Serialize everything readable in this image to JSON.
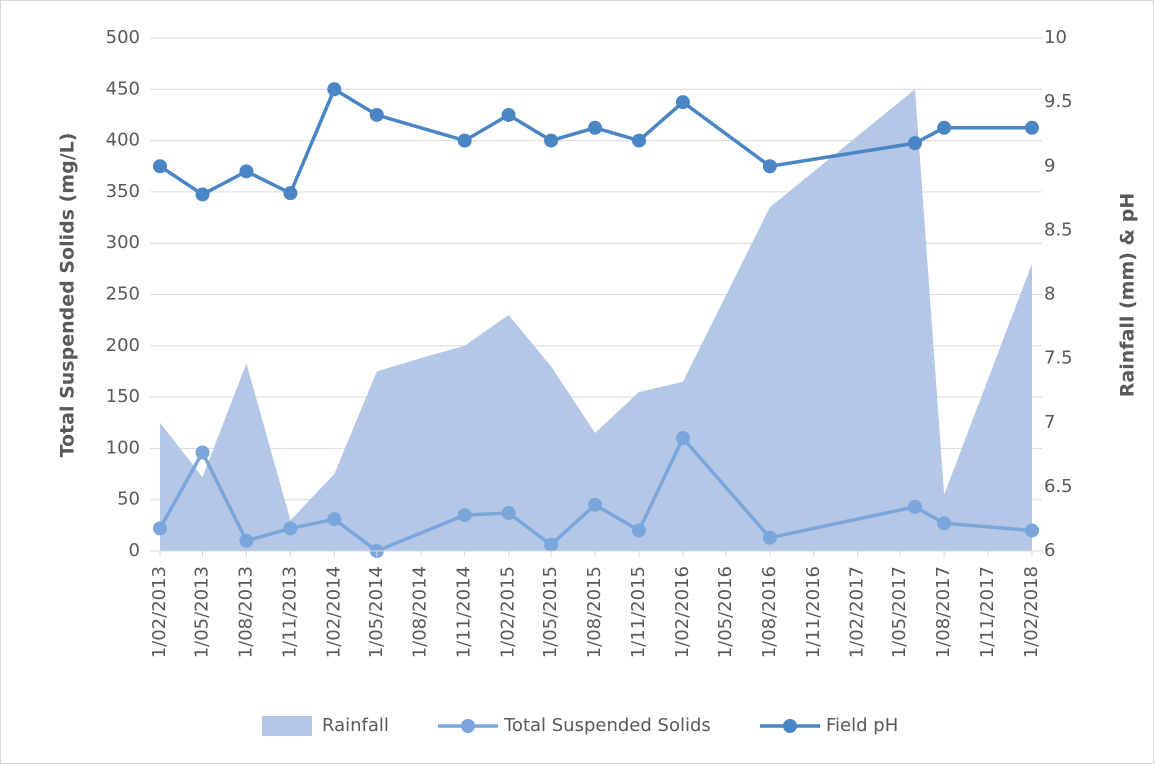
{
  "chart_data": {
    "type": "line",
    "y_label": "Total Suspended Solids (mg/L)",
    "y2_label": "Rainfall (mm) & pH",
    "xlim": [
      "2013-02-01",
      "2018-02-01"
    ],
    "xticks": [
      {
        "value": "2013-02-01",
        "label": "1/02/2013"
      },
      {
        "value": "2013-05-01",
        "label": "1/05/2013"
      },
      {
        "value": "2013-08-01",
        "label": "1/08/2013"
      },
      {
        "value": "2013-11-01",
        "label": "1/11/2013"
      },
      {
        "value": "2014-02-01",
        "label": "1/02/2014"
      },
      {
        "value": "2014-05-01",
        "label": "1/05/2014"
      },
      {
        "value": "2014-08-01",
        "label": "1/08/2014"
      },
      {
        "value": "2014-11-01",
        "label": "1/11/2014"
      },
      {
        "value": "2015-02-01",
        "label": "1/02/2015"
      },
      {
        "value": "2015-05-01",
        "label": "1/05/2015"
      },
      {
        "value": "2015-08-01",
        "label": "1/08/2015"
      },
      {
        "value": "2015-11-01",
        "label": "1/11/2015"
      },
      {
        "value": "2016-02-01",
        "label": "1/02/2016"
      },
      {
        "value": "2016-05-01",
        "label": "1/05/2016"
      },
      {
        "value": "2016-08-01",
        "label": "1/08/2016"
      },
      {
        "value": "2016-11-01",
        "label": "1/11/2016"
      },
      {
        "value": "2017-02-01",
        "label": "1/02/2017"
      },
      {
        "value": "2017-05-01",
        "label": "1/05/2017"
      },
      {
        "value": "2017-08-01",
        "label": "1/08/2017"
      },
      {
        "value": "2017-11-01",
        "label": "1/11/2017"
      },
      {
        "value": "2018-02-01",
        "label": "1/02/2018"
      }
    ],
    "ylim": [
      0,
      500
    ],
    "yticks": [
      0,
      50,
      100,
      150,
      200,
      250,
      300,
      350,
      400,
      450,
      500
    ],
    "y2lim": [
      6,
      10
    ],
    "y2ticks": [
      6,
      6.5,
      7,
      7.5,
      8,
      8.5,
      9,
      9.5,
      10
    ],
    "grid": true,
    "legend": "bottom",
    "series": [
      {
        "name": "Rainfall",
        "kind": "area",
        "color": "#b4c7e7",
        "x": [
          "2013-02-01",
          "2013-05-01",
          "2013-08-01",
          "2013-11-01",
          "2014-02-01",
          "2014-05-01",
          "2014-08-01",
          "2014-11-01",
          "2015-02-01",
          "2015-05-01",
          "2015-08-01",
          "2015-11-01",
          "2016-02-01",
          "2016-08-01",
          "2017-06-01",
          "2017-08-01",
          "2018-02-01"
        ],
        "values": [
          125,
          72,
          183,
          30,
          75,
          175,
          188,
          200,
          230,
          180,
          115,
          155,
          165,
          335,
          450,
          55,
          280
        ]
      },
      {
        "name": "Total Suspended Solids",
        "kind": "line",
        "color": "#7aa6dc",
        "x": [
          "2013-02-01",
          "2013-05-01",
          "2013-08-01",
          "2013-11-01",
          "2014-02-01",
          "2014-05-01",
          "2014-11-01",
          "2015-02-01",
          "2015-05-01",
          "2015-08-01",
          "2015-11-01",
          "2016-02-01",
          "2016-08-01",
          "2017-06-01",
          "2017-08-01",
          "2018-02-01"
        ],
        "values": [
          22,
          96,
          10,
          22,
          31,
          0,
          35,
          37,
          6,
          45,
          20,
          110,
          13,
          43,
          27,
          20
        ]
      },
      {
        "name": "Field pH",
        "kind": "line",
        "axis": "y2",
        "color": "#4a86c5",
        "x": [
          "2013-02-01",
          "2013-05-01",
          "2013-08-01",
          "2013-11-01",
          "2014-02-01",
          "2014-05-01",
          "2014-11-01",
          "2015-02-01",
          "2015-05-01",
          "2015-08-01",
          "2015-11-01",
          "2016-02-01",
          "2016-08-01",
          "2017-06-01",
          "2017-08-01",
          "2018-02-01"
        ],
        "values": [
          9.0,
          8.78,
          8.96,
          8.79,
          9.6,
          9.4,
          9.2,
          9.4,
          9.2,
          9.3,
          9.2,
          9.5,
          9.0,
          9.18,
          9.3,
          9.3
        ]
      }
    ]
  }
}
